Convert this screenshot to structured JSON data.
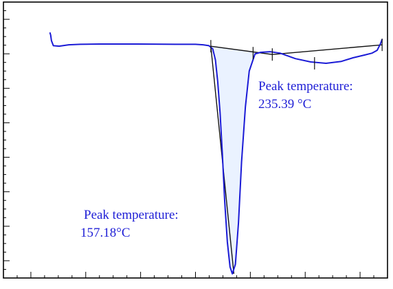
{
  "chart_data": {
    "type": "line",
    "title": "",
    "xlabel": "",
    "ylabel": "",
    "grid": false,
    "legend": false,
    "xlim": [
      0,
      100
    ],
    "ylim": [
      0,
      100
    ],
    "series": [
      {
        "color": "#1a1ad6",
        "x": [
          12.1,
          12.3,
          12.5,
          13.0,
          14.5,
          17,
          20,
          25,
          35,
          45,
          50,
          52,
          53.5,
          54.5,
          55.2,
          55.8,
          56.4,
          57.0,
          57.6,
          58.3,
          59.0,
          59.6,
          60.4,
          61.2,
          62.0,
          63.0,
          64.0,
          65.5,
          67.0,
          69.5,
          72.0,
          76.0,
          80.0,
          84.0,
          88.0,
          91.0,
          94.0,
          96.0,
          97.3,
          98.2,
          98.6
        ],
        "y": [
          89.0,
          88.0,
          86.0,
          84.2,
          84.0,
          84.5,
          84.7,
          84.8,
          84.8,
          84.7,
          84.7,
          84.5,
          84.2,
          83.0,
          79.0,
          71.0,
          60.0,
          45.0,
          28.0,
          13.0,
          4.0,
          1.5,
          5.0,
          20.0,
          42.0,
          62.0,
          75.0,
          81.2,
          81.8,
          82.0,
          81.5,
          79.5,
          78.3,
          77.8,
          78.5,
          79.8,
          80.8,
          81.5,
          82.5,
          85.0,
          86.5
        ]
      }
    ],
    "baselines": [
      {
        "x": [
          54.0,
          60.0
        ],
        "y": [
          84.0,
          1.5
        ]
      },
      {
        "x": [
          54.0,
          70.0
        ],
        "y": [
          84.0,
          81.0
        ]
      },
      {
        "x": [
          70.0,
          98.6
        ],
        "y": [
          81.0,
          84.5
        ]
      }
    ],
    "markers": [
      {
        "x": 54.0,
        "y": 84.0
      },
      {
        "x": 65.0,
        "y": 81.5
      },
      {
        "x": 70.0,
        "y": 81.0
      },
      {
        "x": 81.0,
        "y": 77.8
      },
      {
        "x": 98.6,
        "y": 84.5
      }
    ],
    "fill_color": "#eaf2ff",
    "annotations": [
      {
        "line1": "Peak temperature:",
        "line2": "157.18°C"
      },
      {
        "line1": "Peak temperature:",
        "line2": "235.39 °C"
      }
    ]
  }
}
